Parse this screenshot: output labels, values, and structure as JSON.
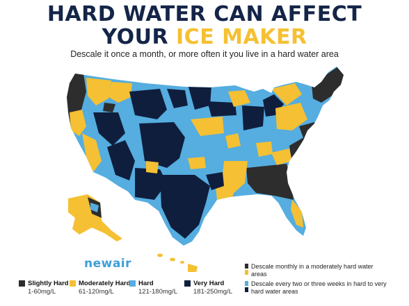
{
  "title": {
    "line1": "HARD WATER CAN AFFECT",
    "line2_prefix": "YOUR ",
    "line2_highlight": "ICE MAKER"
  },
  "subtitle": "Descale it once a month, or more often it you live in a hard water area",
  "brand": "newair",
  "colors": {
    "navy": "#142548",
    "slightly_hard": "#2d2d2d",
    "moderately_hard": "#f5c033",
    "hard": "#55ade0",
    "very_hard": "#0f1e3d"
  },
  "legend": [
    {
      "name": "Slightly Hard",
      "range": "1-60mg/L",
      "color": "#2d2d2d"
    },
    {
      "name": "Moderately Hard",
      "range": "61-120mg/L",
      "color": "#f5c033"
    },
    {
      "name": "Hard",
      "range": "121-180mg/L",
      "color": "#55ade0"
    },
    {
      "name": "Very Hard",
      "range": "181-250mg/L",
      "color": "#0f1e3d"
    }
  ],
  "notes": [
    {
      "text": "Descale monthly in a moderately hard water areas"
    },
    {
      "text": "Descale every two or three weeks in hard to very hard water areas"
    }
  ]
}
